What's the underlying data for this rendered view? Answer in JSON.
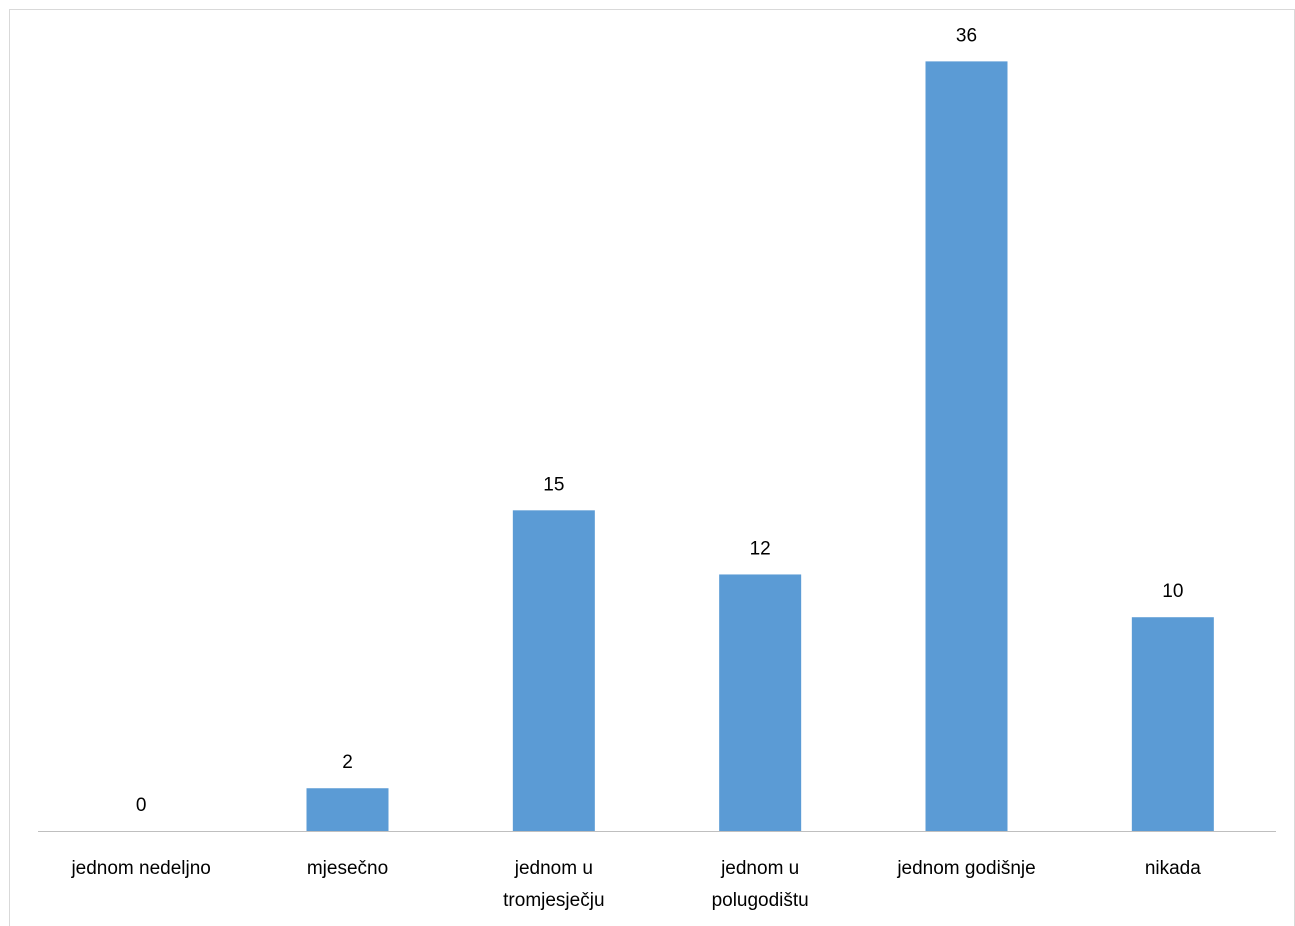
{
  "chart_data": {
    "type": "bar",
    "categories": [
      [
        "jednom nedeljno"
      ],
      [
        "mjesečno"
      ],
      [
        "jednom u",
        "tromjesječju"
      ],
      [
        "jednom u",
        "polugodištu"
      ],
      [
        "jednom godišnje"
      ],
      [
        "nikada"
      ]
    ],
    "values": [
      0,
      2,
      15,
      12,
      36,
      10
    ],
    "ylim": [
      0,
      37
    ],
    "grid": false,
    "legend": "none",
    "bar_color": "#5b9bd5",
    "axis_color": "#bfbfbf",
    "title": "",
    "xlabel": "",
    "ylabel": ""
  }
}
